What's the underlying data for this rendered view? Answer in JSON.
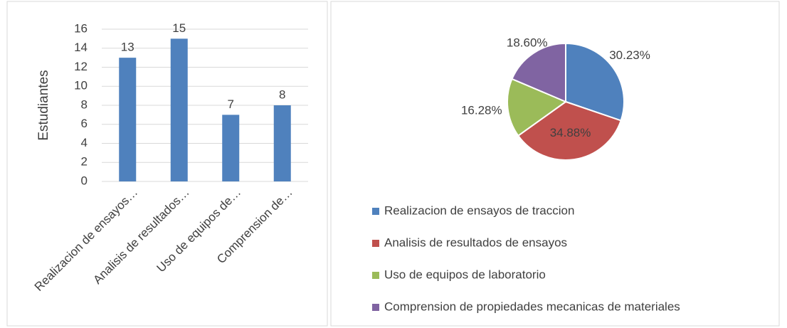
{
  "chart_data": [
    {
      "type": "bar",
      "y_label": "Estudiantes",
      "categories": [
        "Realizacion de ensayos…",
        "Analisis de resultados…",
        "Uso de equipos de…",
        "Comprension de…"
      ],
      "values": [
        13,
        15,
        7,
        8
      ],
      "color": "#4f81bd",
      "ylim": [
        0,
        16
      ],
      "yticks": [
        0,
        2,
        4,
        6,
        8,
        10,
        12,
        14,
        16
      ],
      "grid": true
    },
    {
      "type": "pie",
      "categories": [
        "Realizacion de ensayos de traccion",
        "Analisis de resultados de ensayos",
        "Uso de equipos de laboratorio",
        "Comprension de propiedades mecanicas de materiales"
      ],
      "values": [
        30.23,
        34.88,
        16.28,
        18.6
      ],
      "value_labels": [
        "30.23%",
        "34.88%",
        "16.28%",
        "18.60%"
      ],
      "colors": [
        "#4f81bd",
        "#c0504d",
        "#9bbb59",
        "#8064a2"
      ],
      "legend": "bottom"
    }
  ]
}
